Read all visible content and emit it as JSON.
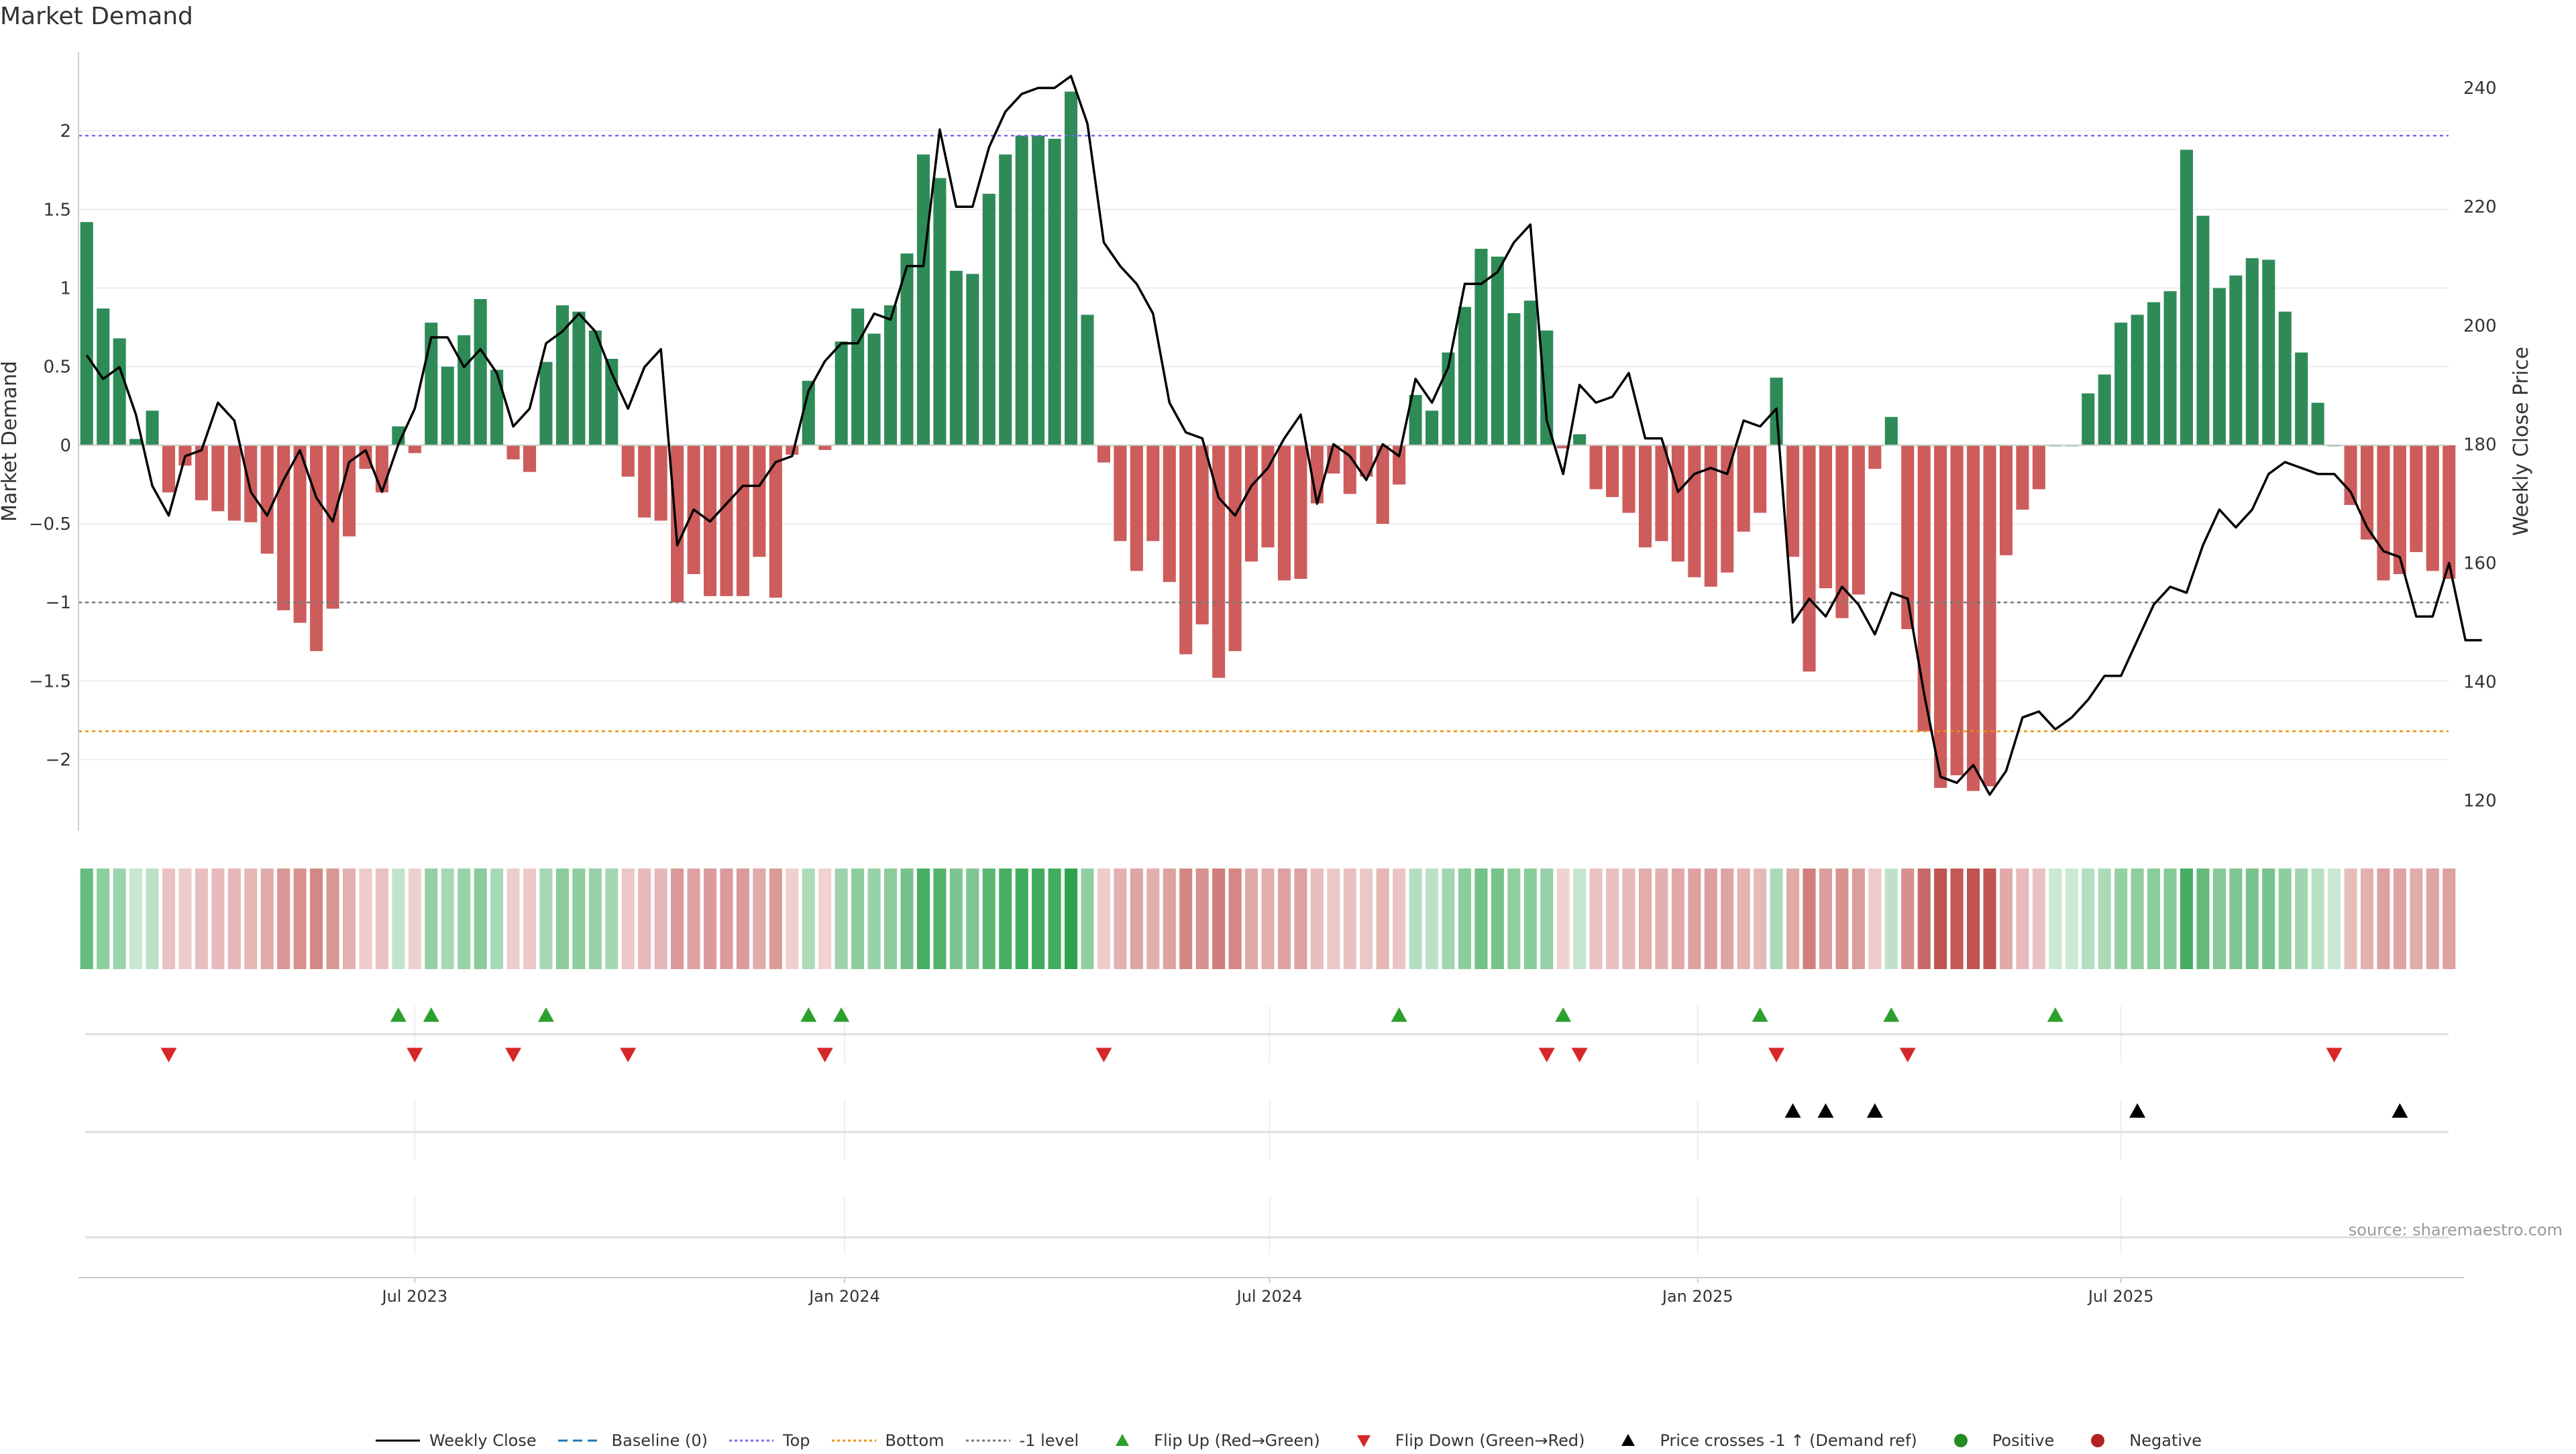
{
  "title": "Market Demand",
  "source": "source: sharemaestro.com",
  "colors": {
    "positive": "#2e8b57",
    "negative": "#cd5c5c",
    "top_line": "#7b68ee",
    "bottom_line": "#e69500",
    "minus1_line": "#777777",
    "baseline": "#1f77b4",
    "flip_up": "#2ca02c",
    "flip_down": "#d62728",
    "cross": "#000000",
    "price": "#000000"
  },
  "chart_data": {
    "type": "bar",
    "title": "Market Demand",
    "ylabel": "Market Demand",
    "y2label": "Weekly Close Price",
    "ylim": [
      -2.45,
      2.5
    ],
    "y2lim": [
      115,
      246
    ],
    "yticks": [
      2,
      1.5,
      1,
      0.5,
      0,
      -0.5,
      -1,
      -1.5,
      -2
    ],
    "y2ticks": [
      240,
      220,
      200,
      180,
      160,
      140,
      120
    ],
    "levels": {
      "top": 1.97,
      "bottom": -1.82,
      "minus_one": -1.0,
      "baseline": 0
    },
    "x_tick_labels": [
      "Jul 2023",
      "Jan 2024",
      "Jul 2024",
      "Jan 2025",
      "Jul 2025"
    ],
    "x_tick_index": [
      20.5,
      46.7,
      72.6,
      98.7,
      124.5
    ],
    "demand": [
      1.42,
      0.87,
      0.68,
      0.04,
      0.22,
      -0.3,
      -0.13,
      -0.35,
      -0.42,
      -0.48,
      -0.49,
      -0.69,
      -1.05,
      -1.13,
      -1.31,
      -1.04,
      -0.58,
      -0.15,
      -0.3,
      0.12,
      -0.05,
      0.78,
      0.5,
      0.7,
      0.93,
      0.48,
      -0.09,
      -0.17,
      0.53,
      0.89,
      0.85,
      0.73,
      0.55,
      -0.2,
      -0.46,
      -0.48,
      -1.0,
      -0.82,
      -0.96,
      -0.96,
      -0.96,
      -0.71,
      -0.97,
      -0.06,
      0.41,
      -0.03,
      0.66,
      0.87,
      0.71,
      0.89,
      1.22,
      1.85,
      1.7,
      1.11,
      1.09,
      1.6,
      1.85,
      1.97,
      1.97,
      1.95,
      2.25,
      0.83,
      -0.11,
      -0.61,
      -0.8,
      -0.61,
      -0.87,
      -1.33,
      -1.14,
      -1.48,
      -1.31,
      -0.74,
      -0.65,
      -0.86,
      -0.85,
      -0.37,
      -0.18,
      -0.31,
      -0.2,
      -0.5,
      -0.25,
      0.32,
      0.22,
      0.59,
      0.88,
      1.25,
      1.2,
      0.84,
      0.92,
      0.73,
      -0.02,
      0.07,
      -0.28,
      -0.33,
      -0.43,
      -0.65,
      -0.61,
      -0.74,
      -0.84,
      -0.9,
      -0.81,
      -0.55,
      -0.43,
      0.43,
      -0.71,
      -1.44,
      -0.91,
      -1.1,
      -0.95,
      -0.15,
      0.18,
      -1.17,
      -1.82,
      -2.18,
      -2.1,
      -2.2,
      -2.17,
      -0.7,
      -0.41,
      -0.28,
      0.0,
      0.0,
      0.33,
      0.45,
      0.78,
      0.83,
      0.91,
      0.98,
      1.88,
      1.46,
      1.0,
      1.08,
      1.19,
      1.18,
      0.85,
      0.59,
      0.27,
      0.0,
      -0.38,
      -0.6,
      -0.86,
      -0.82,
      -0.68,
      -0.8,
      -0.85
    ],
    "weekly_close": [
      195,
      191,
      193,
      185,
      173,
      168,
      178,
      179,
      187,
      184,
      172,
      168,
      174,
      179,
      171,
      167,
      177,
      179,
      172,
      180,
      186,
      198,
      198,
      193,
      196,
      192,
      183,
      186,
      197,
      199,
      202,
      199,
      192,
      186,
      193,
      196,
      163,
      169,
      167,
      170,
      173,
      173,
      177,
      178,
      189,
      194,
      197,
      197,
      202,
      201,
      210,
      210,
      233,
      220,
      220,
      230,
      236,
      239,
      240,
      240,
      242,
      234,
      214,
      210,
      207,
      202,
      187,
      182,
      181,
      171,
      168,
      173,
      176,
      181,
      185,
      170,
      180,
      178,
      174,
      180,
      178,
      191,
      187,
      193,
      207,
      207,
      209,
      214,
      217,
      184,
      175,
      190,
      187,
      188,
      192,
      181,
      181,
      172,
      175,
      176,
      175,
      184,
      183,
      186,
      150,
      154,
      151,
      156,
      153,
      148,
      155,
      154,
      138,
      124,
      123,
      126,
      121,
      125,
      134,
      135,
      132,
      134,
      137,
      141,
      141,
      147,
      153,
      156,
      155,
      163,
      169,
      166,
      169,
      175,
      177,
      176,
      175,
      175,
      172,
      166,
      162,
      161,
      151,
      151,
      160,
      147,
      147
    ],
    "flip_up_index": [
      19,
      21,
      28,
      44,
      46,
      80,
      90,
      102,
      110,
      120
    ],
    "flip_down_index": [
      5,
      20,
      26,
      33,
      45,
      62,
      89,
      91,
      103,
      111,
      137
    ],
    "cross_up_index": [
      104,
      106,
      109,
      125,
      141
    ]
  },
  "legend": [
    {
      "label": "Weekly Close",
      "kind": "line",
      "color": "#000000"
    },
    {
      "label": "Baseline (0)",
      "kind": "dash",
      "color": "#1f77b4"
    },
    {
      "label": "Top",
      "kind": "dot",
      "color": "#7b68ee"
    },
    {
      "label": "Bottom",
      "kind": "dot",
      "color": "#e69500"
    },
    {
      "label": "-1 level",
      "kind": "dot",
      "color": "#777777"
    },
    {
      "label": "Flip Up (Red→Green)",
      "kind": "tri-up",
      "color": "#2ca02c"
    },
    {
      "label": "Flip Down (Green→Red)",
      "kind": "tri-down",
      "color": "#d62728"
    },
    {
      "label": "Price crosses -1 ↑ (Demand ref)",
      "kind": "tri-up",
      "color": "#000000"
    },
    {
      "label": "Positive",
      "kind": "circle",
      "color": "#228b22"
    },
    {
      "label": "Negative",
      "kind": "circle",
      "color": "#b22222"
    }
  ]
}
